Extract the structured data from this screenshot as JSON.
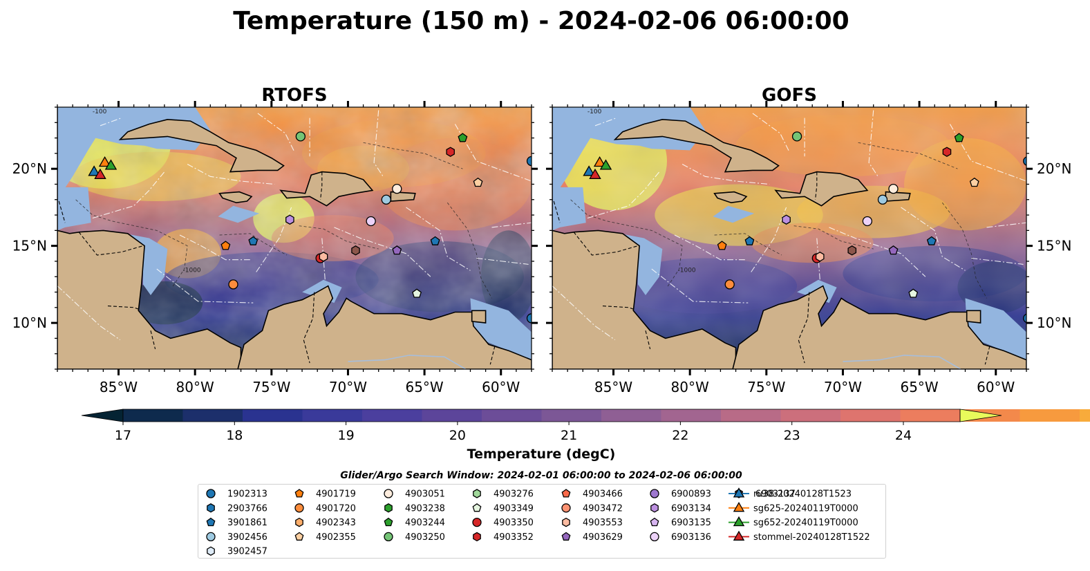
{
  "title": "Temperature (150 m) - 2024-02-06 06:00:00",
  "panels": [
    {
      "title": "RTOFS"
    },
    {
      "title": "GOFS"
    }
  ],
  "map": {
    "lon_ticks": [
      {
        "value": -85,
        "label": "85°W"
      },
      {
        "value": -80,
        "label": "80°W"
      },
      {
        "value": -75,
        "label": "75°W"
      },
      {
        "value": -70,
        "label": "70°W"
      },
      {
        "value": -65,
        "label": "65°W"
      },
      {
        "value": -60,
        "label": "60°W"
      }
    ],
    "lat_ticks": [
      {
        "value": 10,
        "label": "10°N"
      },
      {
        "value": 15,
        "label": "15°N"
      },
      {
        "value": 20,
        "label": "20°N"
      }
    ],
    "lon_range": [
      -89,
      -58
    ],
    "lat_range": [
      7,
      24
    ],
    "land_color": "#cfb28b",
    "shelf_color": "#93b5df",
    "bathymetry_labels": [
      "-100",
      "-1000"
    ]
  },
  "colorbar": {
    "label": "Temperature (degC)",
    "min": 16.5,
    "max": 24.5,
    "step": 0.5,
    "ticks": [
      17,
      18,
      19,
      20,
      21,
      22,
      23,
      24
    ],
    "extend": "both",
    "colors": [
      "#042333",
      "#0e2a4d",
      "#1c2f6b",
      "#2a3390",
      "#3a3a9a",
      "#4b3f9e",
      "#5c459a",
      "#6c4d98",
      "#7c5796",
      "#8f5f94",
      "#a26590",
      "#b86b87",
      "#cc6f7c",
      "#de746e",
      "#ec7d5e",
      "#f3894b",
      "#f79a3e",
      "#f8ab3b",
      "#f6bf3e",
      "#f1d448",
      "#e8fa5b"
    ]
  },
  "search_window": "Glider/Argo Search Window: 2024-02-01 06:00:00 to 2024-02-06 06:00:00",
  "chart_data": {
    "type": "scatter",
    "title": "Temperature (150 m) - 2024-02-06 06:00:00",
    "xlabel": "",
    "ylabel": "",
    "xlim": [
      -89,
      -58
    ],
    "ylim": [
      7,
      24
    ],
    "legend_placement": "bottom-center",
    "series": [
      {
        "name": "1902313",
        "marker": "circle",
        "color": "#1f77b4",
        "points": [
          [
            -58.0,
            20.5
          ],
          [
            -58.0,
            10.3
          ]
        ]
      },
      {
        "name": "2903766",
        "marker": "hexagon",
        "color": "#1f77b4",
        "points": []
      },
      {
        "name": "3901861",
        "marker": "pentagon",
        "color": "#1f77b4",
        "points": [
          [
            -76.2,
            15.3
          ],
          [
            -64.3,
            15.3
          ]
        ]
      },
      {
        "name": "3902456",
        "marker": "circle",
        "color": "#9ecae1",
        "points": [
          [
            -67.5,
            18.0
          ]
        ]
      },
      {
        "name": "3902457",
        "marker": "hexagon",
        "color": "#deebf7",
        "points": []
      },
      {
        "name": "4901719",
        "marker": "pentagon",
        "color": "#ff7f0e",
        "points": [
          [
            -78.0,
            15.0
          ]
        ]
      },
      {
        "name": "4901720",
        "marker": "circle",
        "color": "#fd8d3c",
        "points": [
          [
            -77.5,
            12.5
          ]
        ]
      },
      {
        "name": "4902343",
        "marker": "hexagon",
        "color": "#fdae6b",
        "points": []
      },
      {
        "name": "4902355",
        "marker": "pentagon",
        "color": "#fdd0a2",
        "points": [
          [
            -61.5,
            19.1
          ]
        ]
      },
      {
        "name": "4903051",
        "marker": "circle",
        "color": "#feedde",
        "points": [
          [
            -66.8,
            18.7
          ]
        ]
      },
      {
        "name": "4903238",
        "marker": "hexagon",
        "color": "#2ca02c",
        "points": []
      },
      {
        "name": "4903244",
        "marker": "pentagon",
        "color": "#2ca02c",
        "points": [
          [
            -62.5,
            22.0
          ]
        ]
      },
      {
        "name": "4903250",
        "marker": "circle",
        "color": "#74c476",
        "points": [
          [
            -73.1,
            22.1
          ]
        ]
      },
      {
        "name": "4903276",
        "marker": "hexagon",
        "color": "#a1d99b",
        "points": []
      },
      {
        "name": "4903349",
        "marker": "pentagon",
        "color": "#e5f5e0",
        "points": [
          [
            -65.5,
            11.9
          ]
        ]
      },
      {
        "name": "4903350",
        "marker": "circle",
        "color": "#d62728",
        "points": [
          [
            -71.8,
            14.2
          ]
        ]
      },
      {
        "name": "4903352",
        "marker": "hexagon",
        "color": "#d62728",
        "points": [
          [
            -63.3,
            21.1
          ]
        ]
      },
      {
        "name": "4903466",
        "marker": "pentagon",
        "color": "#fb6a4a",
        "points": []
      },
      {
        "name": "4903472",
        "marker": "circle",
        "color": "#fc9272",
        "points": []
      },
      {
        "name": "4903553",
        "marker": "hexagon",
        "color": "#fcbba1",
        "points": [
          [
            -71.6,
            14.3
          ]
        ]
      },
      {
        "name": "4903629",
        "marker": "pentagon",
        "color": "#9467bd",
        "points": [
          [
            -66.8,
            14.7
          ]
        ]
      },
      {
        "name": "6900893",
        "marker": "circle",
        "color": "#9e78cf",
        "points": []
      },
      {
        "name": "6903134",
        "marker": "hexagon",
        "color": "#bc90e0",
        "points": [
          [
            -73.8,
            16.7
          ]
        ]
      },
      {
        "name": "6903135",
        "marker": "pentagon",
        "color": "#d7b5f0",
        "points": []
      },
      {
        "name": "6903136",
        "marker": "circle",
        "color": "#ecd2f8",
        "points": [
          [
            -68.5,
            16.6
          ]
        ]
      },
      {
        "name": "6903137",
        "marker": "hexagon",
        "color": "#8c564b",
        "points": [
          [
            -69.5,
            14.7
          ]
        ]
      },
      {
        "name": "ru38-20240128T1523",
        "marker": "triangle",
        "color": "#1f77b4",
        "points": [
          [
            -86.6,
            19.8
          ]
        ]
      },
      {
        "name": "sg625-20240119T0000",
        "marker": "triangle",
        "color": "#ff7f0e",
        "points": [
          [
            -85.9,
            20.4
          ]
        ]
      },
      {
        "name": "sg652-20240119T0000",
        "marker": "triangle",
        "color": "#2ca02c",
        "points": [
          [
            -85.5,
            20.2
          ]
        ]
      },
      {
        "name": "stommel-20240128T1522",
        "marker": "triangle",
        "color": "#d62728",
        "points": [
          [
            -86.2,
            19.6
          ]
        ]
      }
    ]
  }
}
